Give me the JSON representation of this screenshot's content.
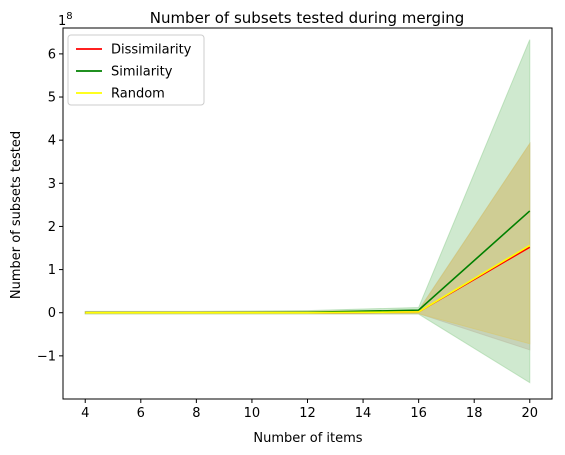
{
  "chart_data": {
    "type": "line",
    "title": "Number of subsets tested during merging",
    "xlabel": "Number of items",
    "ylabel": "Number of subsets tested",
    "y_multiplier": "1e8",
    "x": [
      4,
      8,
      12,
      16,
      20
    ],
    "xticks": [
      "4",
      "6",
      "8",
      "10",
      "12",
      "14",
      "16",
      "18",
      "20"
    ],
    "yticks": [
      "−1",
      "0",
      "1",
      "2",
      "3",
      "4",
      "5",
      "6"
    ],
    "xlim": [
      3.2,
      20.8
    ],
    "ylim": [
      -2.0,
      6.6
    ],
    "legend": "top-left",
    "series": [
      {
        "name": "Dissimilarity",
        "color": "#ff0000",
        "values": [
          0.0,
          0.0,
          0.0,
          0.02,
          1.52
        ],
        "band_lower": [
          -0.02,
          -0.02,
          -0.02,
          -0.02,
          -0.86
        ],
        "band_upper": [
          0.02,
          0.02,
          0.03,
          0.06,
          3.92
        ],
        "band_color": "#d9a8a8"
      },
      {
        "name": "Similarity",
        "color": "#008000",
        "values": [
          0.0,
          0.0,
          0.01,
          0.06,
          2.36
        ],
        "band_lower": [
          -0.03,
          -0.03,
          -0.03,
          -0.03,
          -1.62
        ],
        "band_upper": [
          0.03,
          0.03,
          0.05,
          0.12,
          6.33
        ],
        "band_color": "#9fd39f"
      },
      {
        "name": "Random",
        "color": "#ffff00",
        "values": [
          0.0,
          0.0,
          0.0,
          0.02,
          1.56
        ],
        "band_lower": [
          -0.02,
          -0.02,
          -0.02,
          -0.02,
          -0.72
        ],
        "band_upper": [
          0.02,
          0.02,
          0.03,
          0.05,
          3.92
        ],
        "band_color": "#d7c86f"
      }
    ]
  }
}
